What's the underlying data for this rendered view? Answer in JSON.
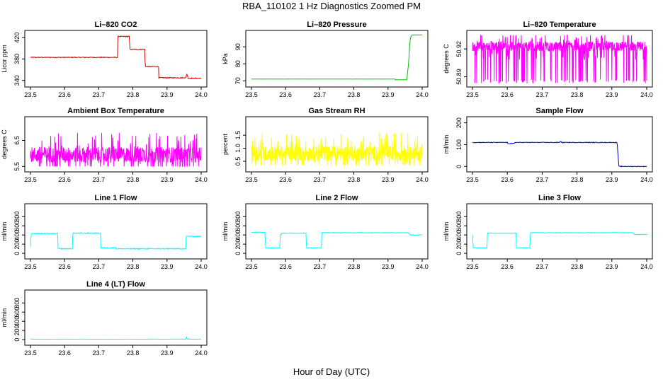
{
  "title": "RBA_110102  1 Hz Diagnostics Zoomed PM",
  "xlabel": "Hour of Day (UTC)",
  "colors": {
    "red": "#e00000",
    "green": "#00c000",
    "magenta": "#ff00ff",
    "yellow": "#ffff00",
    "blue": "#0000cc",
    "cyan": "#00ffff"
  },
  "chart_data": [
    {
      "type": "line",
      "title": "Li–820 CO2",
      "ylabel": "Licor ppm",
      "color": "red",
      "xlim": [
        23.5,
        24.0
      ],
      "xticks": [
        "23.5",
        "23.6",
        "23.7",
        "23.8",
        "23.9",
        "24.0"
      ],
      "yticks": [
        {
          "v": 340,
          "label": "340"
        },
        {
          "v": 380,
          "label": "380"
        },
        {
          "v": 420,
          "label": "420"
        }
      ],
      "ylim": [
        333,
        428
      ],
      "x": [
        23.5,
        23.755,
        23.756,
        23.79,
        23.791,
        23.835,
        23.836,
        23.875,
        23.876,
        23.955,
        23.958,
        23.962,
        24.0
      ],
      "y": [
        383,
        383,
        422,
        422,
        398,
        398,
        366,
        366,
        345,
        345,
        352,
        344,
        344
      ],
      "noise": 0.8
    },
    {
      "type": "line",
      "title": "Li–820 Pressure",
      "ylabel": "kPa",
      "color": "green",
      "xlim": [
        23.5,
        24.0
      ],
      "xticks": [
        "23.5",
        "23.6",
        "23.7",
        "23.8",
        "23.9",
        "24.0"
      ],
      "yticks": [
        {
          "v": 70,
          "label": "70"
        },
        {
          "v": 80,
          "label": "80"
        },
        {
          "v": 90,
          "label": "90"
        }
      ],
      "ylim": [
        68,
        98
      ],
      "x": [
        23.5,
        23.92,
        23.921,
        23.955,
        23.96,
        23.965,
        23.97,
        24.0
      ],
      "y": [
        71,
        71,
        70.6,
        70.6,
        80,
        95,
        97,
        97
      ],
      "noise": 0.05
    },
    {
      "type": "noise",
      "title": "Li–820 Temperature",
      "ylabel": "degrees C",
      "color": "magenta",
      "xlim": [
        23.5,
        24.0
      ],
      "xticks": [
        "23.5",
        "23.6",
        "23.7",
        "23.8",
        "23.9",
        "24.0"
      ],
      "yticks": [
        {
          "v": 50.89,
          "label": "50.89"
        },
        {
          "v": 50.92,
          "label": "50.92"
        }
      ],
      "ylim": [
        50.882,
        50.937
      ],
      "base": 50.923,
      "band": [
        50.905,
        50.935
      ],
      "spikes": 50.883,
      "spikeRate": 0.12
    },
    {
      "type": "noise",
      "title": "Ambient Box Temperature",
      "ylabel": "degrees C",
      "color": "magenta",
      "xlim": [
        23.5,
        24.0
      ],
      "xticks": [
        "23.5",
        "23.6",
        "23.7",
        "23.8",
        "23.9",
        "24.0"
      ],
      "yticks": [
        {
          "v": 5.5,
          "label": "5.5"
        },
        {
          "v": 6.5,
          "label": "6.5"
        }
      ],
      "ylim": [
        5.4,
        7.3
      ],
      "base": 5.95,
      "band": [
        5.5,
        7.2
      ]
    },
    {
      "type": "noise",
      "title": "Gas Stream RH",
      "ylabel": "percent",
      "color": "yellow",
      "xlim": [
        23.5,
        24.0
      ],
      "xticks": [
        "23.5",
        "23.6",
        "23.7",
        "23.8",
        "23.9",
        "24.0"
      ],
      "yticks": [
        {
          "v": 0.5,
          "label": "0.5"
        },
        {
          "v": 1.0,
          "label": "1.0"
        },
        {
          "v": 1.5,
          "label": "1.5"
        }
      ],
      "ylim": [
        0.2,
        2.1
      ],
      "base": 0.8,
      "band": [
        0.35,
        2.0
      ]
    },
    {
      "type": "line",
      "title": "Sample Flow",
      "ylabel": "ml/min",
      "color": "blue",
      "xlim": [
        23.5,
        24.0
      ],
      "xticks": [
        "23.5",
        "23.6",
        "23.7",
        "23.8",
        "23.9",
        "24.0"
      ],
      "yticks": [
        {
          "v": 0,
          "label": "0"
        },
        {
          "v": 100,
          "label": "100"
        },
        {
          "v": 200,
          "label": "200"
        }
      ],
      "ylim": [
        -12,
        215
      ],
      "x": [
        23.5,
        23.6,
        23.601,
        23.62,
        23.621,
        23.75,
        23.751,
        23.76,
        23.761,
        23.9,
        23.915,
        23.92,
        24.0
      ],
      "y": [
        110,
        110,
        105,
        105,
        110,
        110,
        115,
        108,
        110,
        110,
        110,
        0,
        0
      ],
      "noise": 1.5
    },
    {
      "type": "line",
      "title": "Line 1 Flow",
      "ylabel": "ml/min",
      "color": "cyan",
      "xlim": [
        23.5,
        24.0
      ],
      "xticks": [
        "23.5",
        "23.6",
        "23.7",
        "23.8",
        "23.9",
        "24.0"
      ],
      "yticks": [
        {
          "v": 0,
          "label": "0"
        },
        {
          "v": 200,
          "label": "200"
        },
        {
          "v": 400,
          "label": "400"
        },
        {
          "v": 600,
          "label": "600"
        },
        {
          "v": 800,
          "label": "800"
        }
      ],
      "ylim": [
        -60,
        1020
      ],
      "x": [
        23.5,
        23.502,
        23.58,
        23.581,
        23.623,
        23.624,
        23.705,
        23.706,
        23.75,
        23.751,
        23.955,
        23.956,
        24.0
      ],
      "y": [
        150,
        430,
        430,
        100,
        100,
        440,
        440,
        120,
        120,
        100,
        100,
        370,
        370
      ],
      "noise": 10
    },
    {
      "type": "line",
      "title": "Line 2 Flow",
      "ylabel": "ml/min",
      "color": "cyan",
      "xlim": [
        23.5,
        24.0
      ],
      "xticks": [
        "23.5",
        "23.6",
        "23.7",
        "23.8",
        "23.9",
        "24.0"
      ],
      "yticks": [
        {
          "v": 0,
          "label": "0"
        },
        {
          "v": 200,
          "label": "200"
        },
        {
          "v": 400,
          "label": "400"
        },
        {
          "v": 600,
          "label": "600"
        },
        {
          "v": 800,
          "label": "800"
        }
      ],
      "ylim": [
        -60,
        1020
      ],
      "x": [
        23.5,
        23.54,
        23.541,
        23.583,
        23.584,
        23.59,
        23.592,
        23.66,
        23.661,
        23.705,
        23.706,
        23.96,
        23.965,
        24.0
      ],
      "y": [
        460,
        460,
        120,
        120,
        400,
        440,
        440,
        440,
        120,
        120,
        450,
        450,
        400,
        400
      ],
      "noise": 6
    },
    {
      "type": "line",
      "title": "Line 3 Flow",
      "ylabel": "ml/min",
      "color": "cyan",
      "xlim": [
        23.5,
        24.0
      ],
      "xticks": [
        "23.5",
        "23.6",
        "23.7",
        "23.8",
        "23.9",
        "24.0"
      ],
      "yticks": [
        {
          "v": 0,
          "label": "0"
        },
        {
          "v": 200,
          "label": "200"
        },
        {
          "v": 400,
          "label": "400"
        },
        {
          "v": 600,
          "label": "600"
        },
        {
          "v": 800,
          "label": "800"
        }
      ],
      "ylim": [
        -60,
        1020
      ],
      "x": [
        23.5,
        23.502,
        23.542,
        23.543,
        23.625,
        23.626,
        23.665,
        23.666,
        23.96,
        23.965,
        24.0
      ],
      "y": [
        400,
        120,
        120,
        440,
        440,
        120,
        120,
        450,
        450,
        410,
        410
      ],
      "noise": 6
    },
    {
      "type": "line",
      "title": "Line 4 (LT) Flow",
      "ylabel": "ml/min",
      "color": "cyan",
      "xlim": [
        23.5,
        24.0
      ],
      "xticks": [
        "23.5",
        "23.6",
        "23.7",
        "23.8",
        "23.9",
        "24.0"
      ],
      "yticks": [
        {
          "v": 0,
          "label": "0"
        },
        {
          "v": 200,
          "label": "200"
        },
        {
          "v": 400,
          "label": "400"
        },
        {
          "v": 600,
          "label": "600"
        },
        {
          "v": 800,
          "label": "800"
        }
      ],
      "ylim": [
        -60,
        1020
      ],
      "x": [
        23.5,
        23.955,
        23.957,
        23.959,
        24.0
      ],
      "y": [
        10,
        10,
        60,
        10,
        10
      ],
      "noise": 3
    }
  ]
}
